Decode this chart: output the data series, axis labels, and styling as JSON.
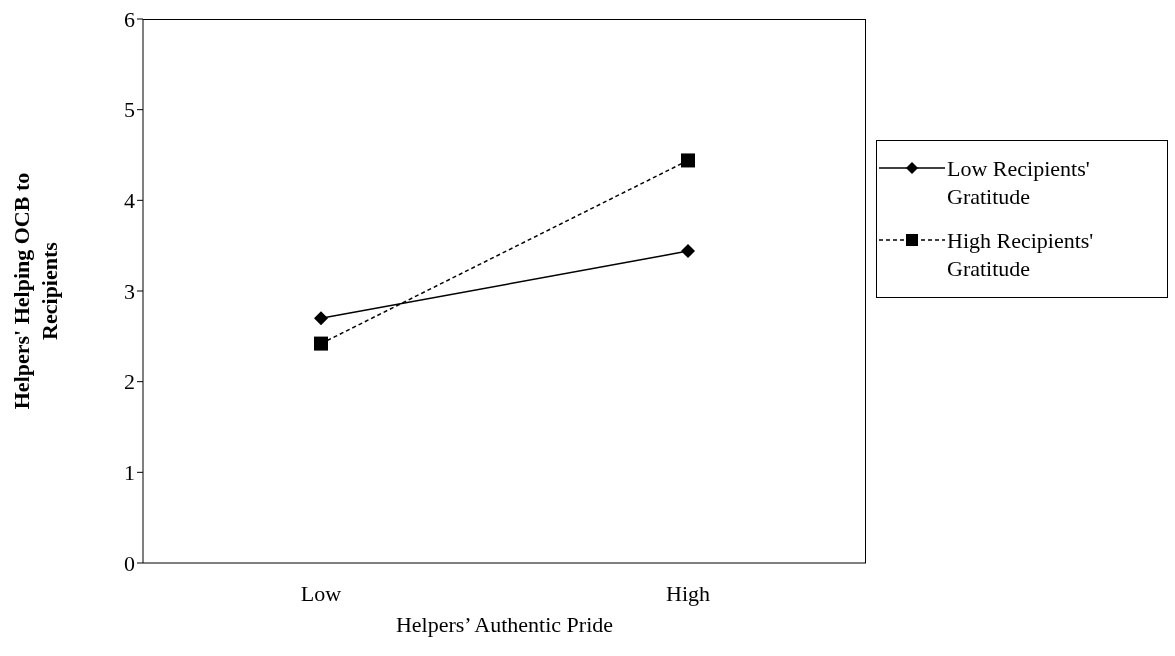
{
  "chart_data": {
    "type": "line",
    "xlabel": "Helpers’ Authentic Pride",
    "ylabel": "Helpers' Helping OCB to Recipients",
    "categories": [
      "Low",
      "High"
    ],
    "series": [
      {
        "name": "Low Recipients' Gratitude",
        "color": "#000000",
        "values": [
          2.7,
          3.44
        ],
        "marker": "diamond",
        "line_style": "solid"
      },
      {
        "name": "High Recipients' Gratitude",
        "color": "#000000",
        "values": [
          2.42,
          4.44
        ],
        "marker": "square",
        "line_style": "dashed"
      }
    ],
    "ylim": [
      0,
      6
    ],
    "yticks": [
      0,
      1,
      2,
      3,
      4,
      5,
      6
    ],
    "grid": false,
    "legend": "right"
  }
}
